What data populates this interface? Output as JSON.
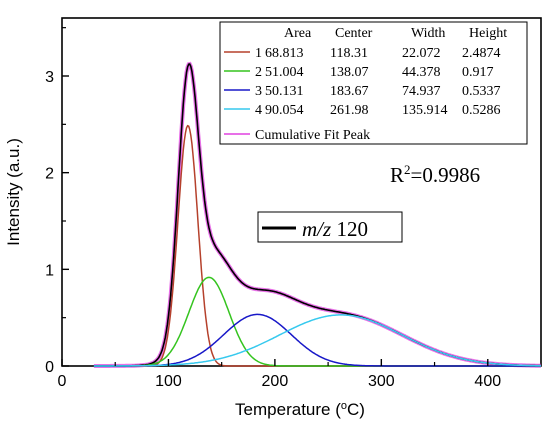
{
  "chart_data": {
    "type": "line",
    "xlabel": "Temperature (",
    "xlabel_sup": "o",
    "xlabel_tail": "C)",
    "ylabel": "Intensity (a.u.)",
    "xlim": [
      0,
      450
    ],
    "ylim": [
      0,
      3.6
    ],
    "x_ticks": [
      "0",
      "100",
      "200",
      "300",
      "400"
    ],
    "y_ticks": [
      "0",
      "1",
      "2",
      "3"
    ],
    "grid": false,
    "legend_position": "top-right",
    "table_headers": [
      "Area",
      "Center",
      "Width",
      "Height"
    ],
    "peaks": [
      {
        "id": "1",
        "area": "68.813",
        "center": "118.31",
        "width": "22.072",
        "height": "2.4874",
        "color": "#b5412c",
        "center_value": 118.31,
        "width_value": 22.072,
        "height_value": 2.4874
      },
      {
        "id": "2",
        "area": "51.004",
        "center": "138.07",
        "width": "44.378",
        "height": "0.917",
        "color": "#35c41f",
        "center_value": 138.07,
        "width_value": 44.378,
        "height_value": 0.917
      },
      {
        "id": "3",
        "area": "50.131",
        "center": "183.67",
        "width": "74.937",
        "height": "0.5337",
        "color": "#1818c8",
        "center_value": 183.67,
        "width_value": 74.937,
        "height_value": 0.5337
      },
      {
        "id": "4",
        "area": "90.054",
        "center": "261.98",
        "width": "135.914",
        "height": "0.5286",
        "color": "#36c9ee",
        "center_value": 261.98,
        "width_value": 135.914,
        "height_value": 0.5286
      }
    ],
    "cumulative_label": "Cumulative Fit Peak",
    "cumulative_color": "#e040e0",
    "r2_label": "R",
    "r2_sup": "2",
    "r2_value": "=0.9986",
    "data_series_label_italic": "m/z",
    "data_series_label_value": " 120",
    "data_series_color": "#000000",
    "x_range": [
      30,
      450
    ]
  }
}
